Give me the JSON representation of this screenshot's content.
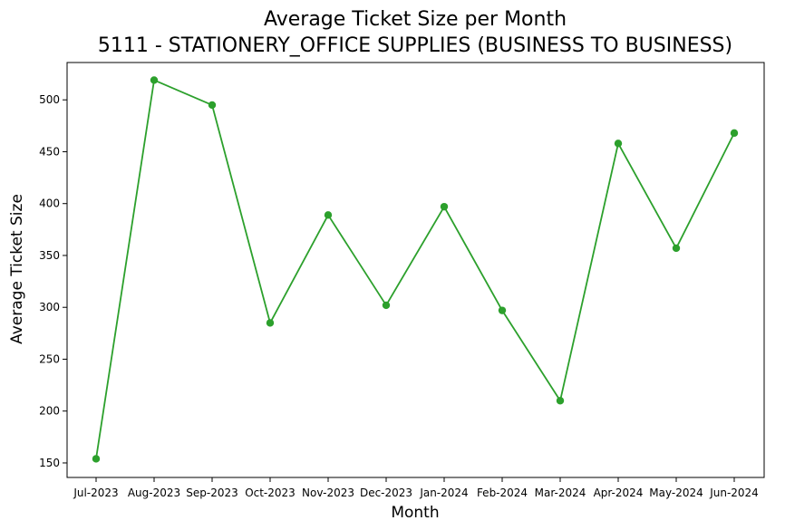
{
  "chart_data": {
    "type": "line",
    "title": "Average Ticket Size per Month",
    "subtitle": "5111 - STATIONERY_OFFICE SUPPLIES (BUSINESS TO BUSINESS)",
    "xlabel": "Month",
    "ylabel": "Average Ticket Size",
    "categories": [
      "Jul-2023",
      "Aug-2023",
      "Sep-2023",
      "Oct-2023",
      "Nov-2023",
      "Dec-2023",
      "Jan-2024",
      "Feb-2024",
      "Mar-2024",
      "Apr-2024",
      "May-2024",
      "Jun-2024"
    ],
    "series": [
      {
        "values": [
          154,
          519,
          495,
          285,
          389,
          302,
          397,
          297,
          210,
          458,
          357,
          468
        ],
        "color": "#2ca02c",
        "marker": "circle"
      }
    ],
    "ylim": [
      136,
      536
    ],
    "yticks": [
      150,
      200,
      250,
      300,
      350,
      400,
      450,
      500
    ],
    "grid": false,
    "legend": "none"
  }
}
